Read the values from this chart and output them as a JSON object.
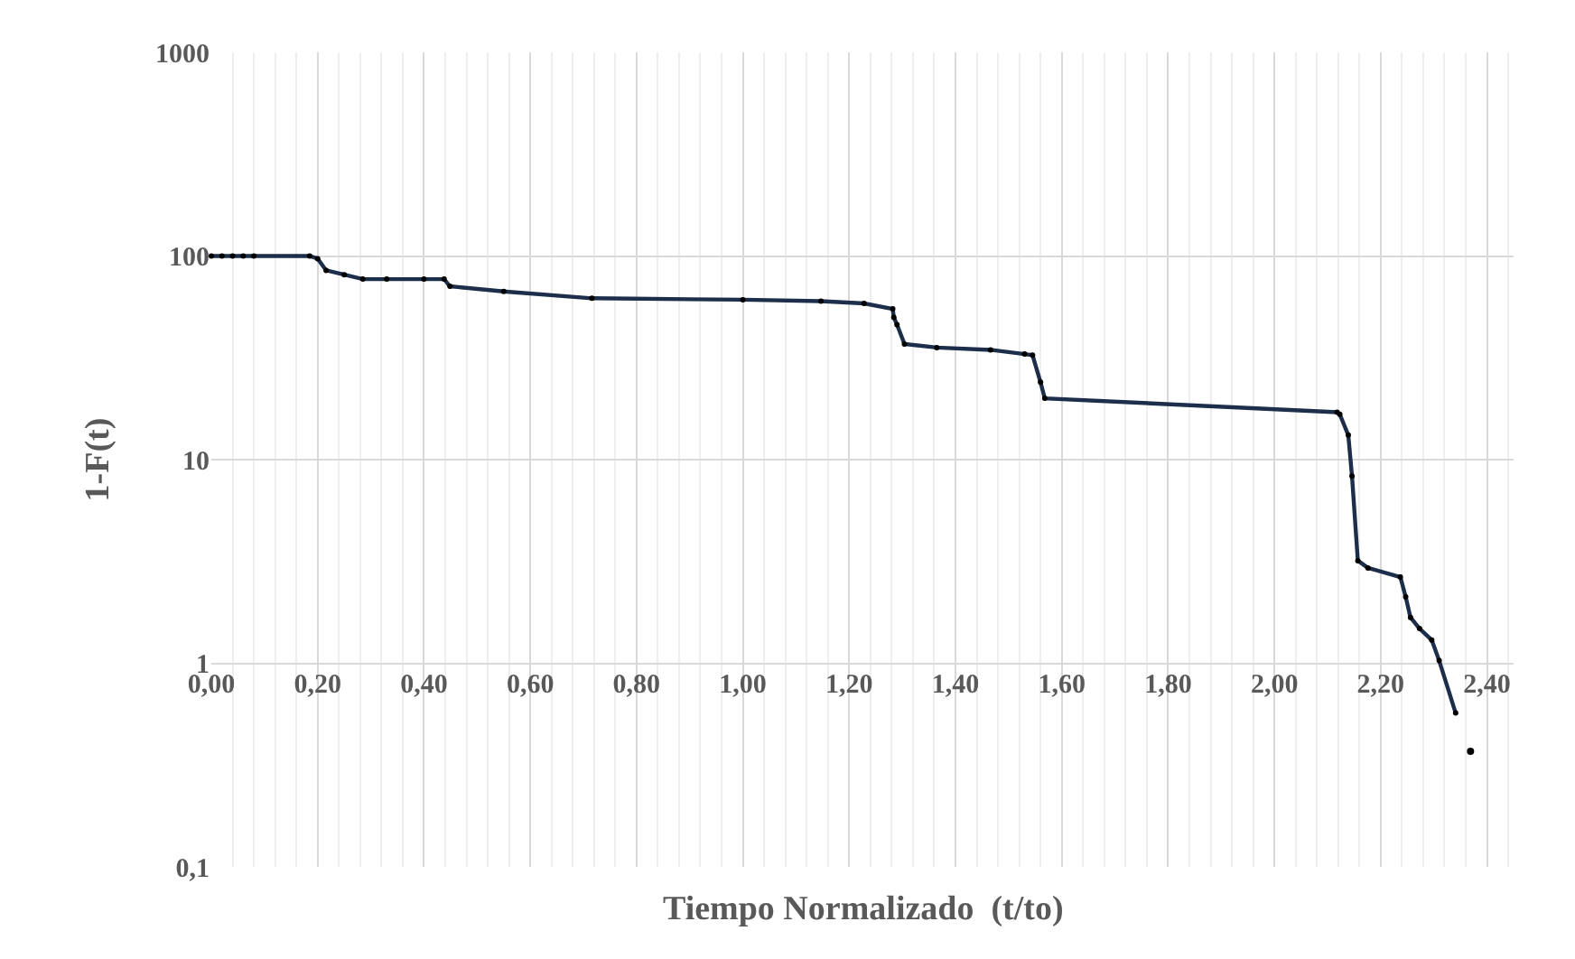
{
  "chart_data": {
    "type": "line",
    "xlabel": "Tiempo Normalizado  (t/to)",
    "ylabel": "1-F(t)",
    "log": "y",
    "grid": true,
    "marker": "circle",
    "line_style": "solid",
    "xlim": [
      0,
      2.45
    ],
    "xticks": [
      {
        "value": 0,
        "label": "0,00"
      },
      {
        "value": 0.2,
        "label": "0,20"
      },
      {
        "value": 0.4,
        "label": "0,40"
      },
      {
        "value": 0.6,
        "label": "0,60"
      },
      {
        "value": 0.8,
        "label": "0,80"
      },
      {
        "value": 1,
        "label": "1,00"
      },
      {
        "value": 1.2,
        "label": "1,20"
      },
      {
        "value": 1.4,
        "label": "1,40"
      },
      {
        "value": 1.6,
        "label": "1,60"
      },
      {
        "value": 1.8,
        "label": "1,80"
      },
      {
        "value": 2,
        "label": "2,00"
      },
      {
        "value": 2.2,
        "label": "2,20"
      },
      {
        "value": 2.4,
        "label": "2,40"
      }
    ],
    "ylim": [
      0.1,
      1000
    ],
    "yticks": [
      {
        "value": 0.1,
        "label": "0,1"
      },
      1,
      10,
      100,
      1000
    ],
    "series": [
      {
        "color": "#1c2e4a",
        "x": [
          0,
          0.02,
          0.04,
          0.06,
          0.08,
          0.185,
          0.2,
          0.216,
          0.25,
          0.285,
          0.33,
          0.4,
          0.438,
          0.449,
          0.55,
          0.716,
          1.0,
          1.147,
          1.228,
          1.282,
          1.284,
          1.29,
          1.304,
          1.365,
          1.466,
          1.53,
          1.545,
          1.56,
          1.568,
          2.118,
          2.123,
          2.139,
          2.146,
          2.157,
          2.176,
          2.237,
          2.247,
          2.256,
          2.273,
          2.296,
          2.31,
          2.341
        ],
        "values": [
          100,
          100,
          100,
          100,
          100,
          100,
          97,
          85,
          81,
          77,
          77,
          77,
          77,
          71,
          67,
          62,
          61,
          60,
          58.5,
          55,
          50,
          46,
          37,
          35.5,
          34.6,
          33,
          32.6,
          24,
          20,
          17.1,
          16.7,
          13.2,
          8.3,
          3.19,
          2.94,
          2.65,
          2.12,
          1.68,
          1.48,
          1.3,
          1.03,
          0.57
        ]
      },
      {
        "type": "scatter",
        "color": "#000000",
        "x": [
          2.369
        ],
        "values": [
          0.37
        ]
      }
    ]
  }
}
